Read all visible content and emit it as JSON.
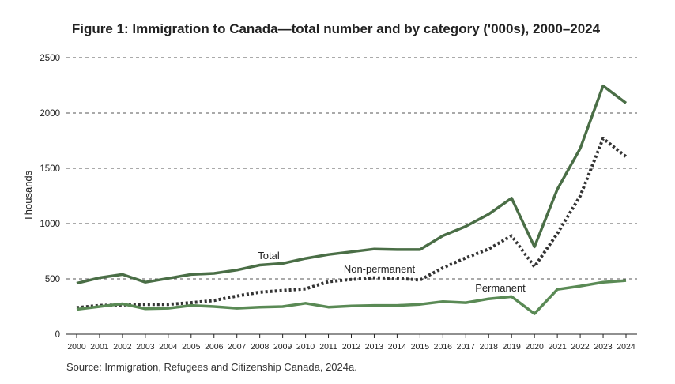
{
  "chart_data": {
    "type": "line",
    "title": "Figure 1: Immigration to Canada—total number and by category ('000s), 2000–2024",
    "xlabel": "",
    "ylabel": "Thousands",
    "ylim": [
      0,
      2500
    ],
    "yticks": [
      0,
      500,
      1000,
      1500,
      2000,
      2500
    ],
    "grid": true,
    "x": [
      "2000",
      "2001",
      "2002",
      "2003",
      "2004",
      "2005",
      "2006",
      "2007",
      "2008",
      "2009",
      "2010",
      "2011",
      "2012",
      "2013",
      "2014",
      "2015",
      "2016",
      "2017",
      "2018",
      "2019",
      "2020",
      "2021",
      "2022",
      "2023",
      "2024"
    ],
    "series": [
      {
        "name": "Total",
        "style": "solid",
        "color": "#4a6e46",
        "values": [
          460,
          510,
          540,
          470,
          505,
          540,
          550,
          580,
          625,
          640,
          685,
          720,
          745,
          770,
          765,
          765,
          890,
          975,
          1085,
          1230,
          790,
          1310,
          1680,
          2245,
          2090
        ]
      },
      {
        "name": "Non-permanent",
        "style": "dotted",
        "color": "#333333",
        "values": [
          240,
          260,
          265,
          270,
          270,
          285,
          305,
          345,
          380,
          395,
          410,
          475,
          495,
          510,
          505,
          490,
          600,
          690,
          770,
          890,
          610,
          910,
          1250,
          1770,
          1605
        ]
      },
      {
        "name": "Permanent",
        "style": "solid",
        "color": "#5a8a55",
        "values": [
          225,
          250,
          275,
          230,
          235,
          260,
          250,
          235,
          245,
          250,
          280,
          245,
          255,
          260,
          260,
          270,
          295,
          285,
          320,
          340,
          185,
          405,
          435,
          470,
          485
        ]
      }
    ],
    "source": "Source: Immigration, Refugees and Citizenship Canada, 2024a."
  }
}
